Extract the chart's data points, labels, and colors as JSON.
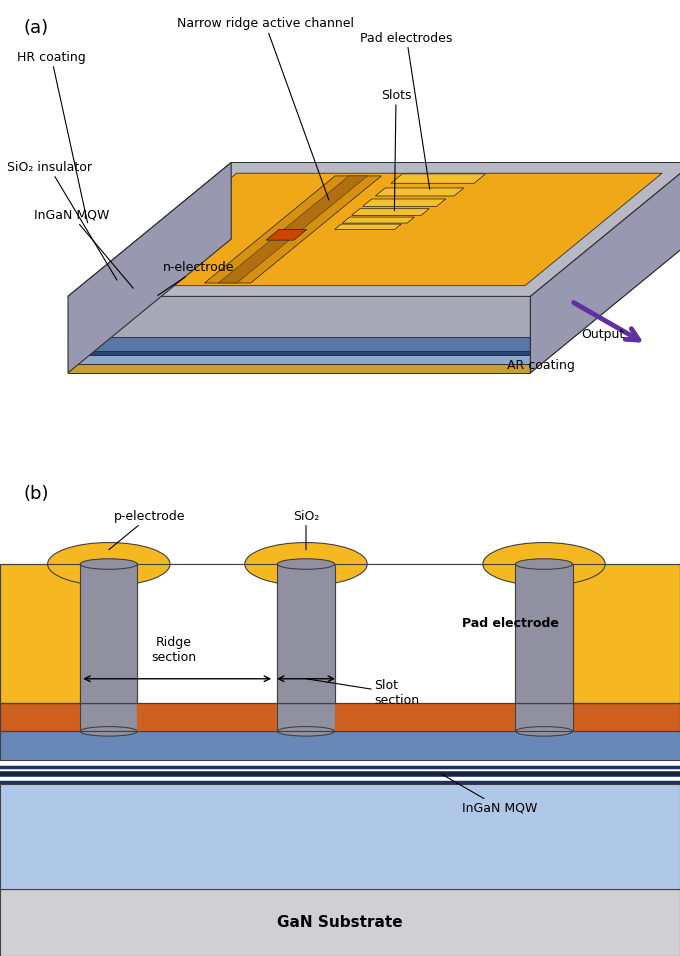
{
  "fig_width": 6.8,
  "fig_height": 9.56,
  "dpi": 100,
  "bg_color": "#ffffff",
  "panel_a_label": "(a)",
  "panel_b_label": "(b)",
  "colors": {
    "gold_top": "#F5B820",
    "gold_mid": "#E8A010",
    "gold_dark": "#C88010",
    "orange_red": "#CC4400",
    "gray_body": "#B8B8C4",
    "gray_side": "#9898A8",
    "gray_front": "#A8A8B8",
    "blue_light": "#A8C4E0",
    "blue_mid": "#7090C0",
    "blue_dark": "#304878",
    "blue_line": "#203060",
    "light_blue_sub": "#C8D8F0",
    "purple": "#6030A0",
    "elec_gray": "#9090A0",
    "elec_dark": "#606070",
    "orange_pgaN": "#D06020",
    "gan_gray": "#D0D0D4",
    "white": "#ffffff",
    "edge": "#303030",
    "edge_thin": "#404040"
  },
  "labels_a": {
    "hr_coating": "HR coating",
    "narrow_ridge": "Narrow ridge active channel",
    "pad_electrodes": "Pad electrodes",
    "slots": "Slots",
    "sio2_insulator": "SiO₂ insulator",
    "ingaN_mqw": "InGaN MQW",
    "n_electrode": "n-electrode",
    "output": "Output",
    "ar_coating": "AR coating"
  },
  "labels_b": {
    "p_electrode": "p-electrode",
    "sio2": "SiO₂",
    "pad_electrode": "Pad electrode",
    "ridge_section": "Ridge\nsection",
    "slot_section": "Slot\nsection",
    "ingaN_mqw": "InGaN MQW",
    "gan_substrate": "GaN Substrate"
  }
}
